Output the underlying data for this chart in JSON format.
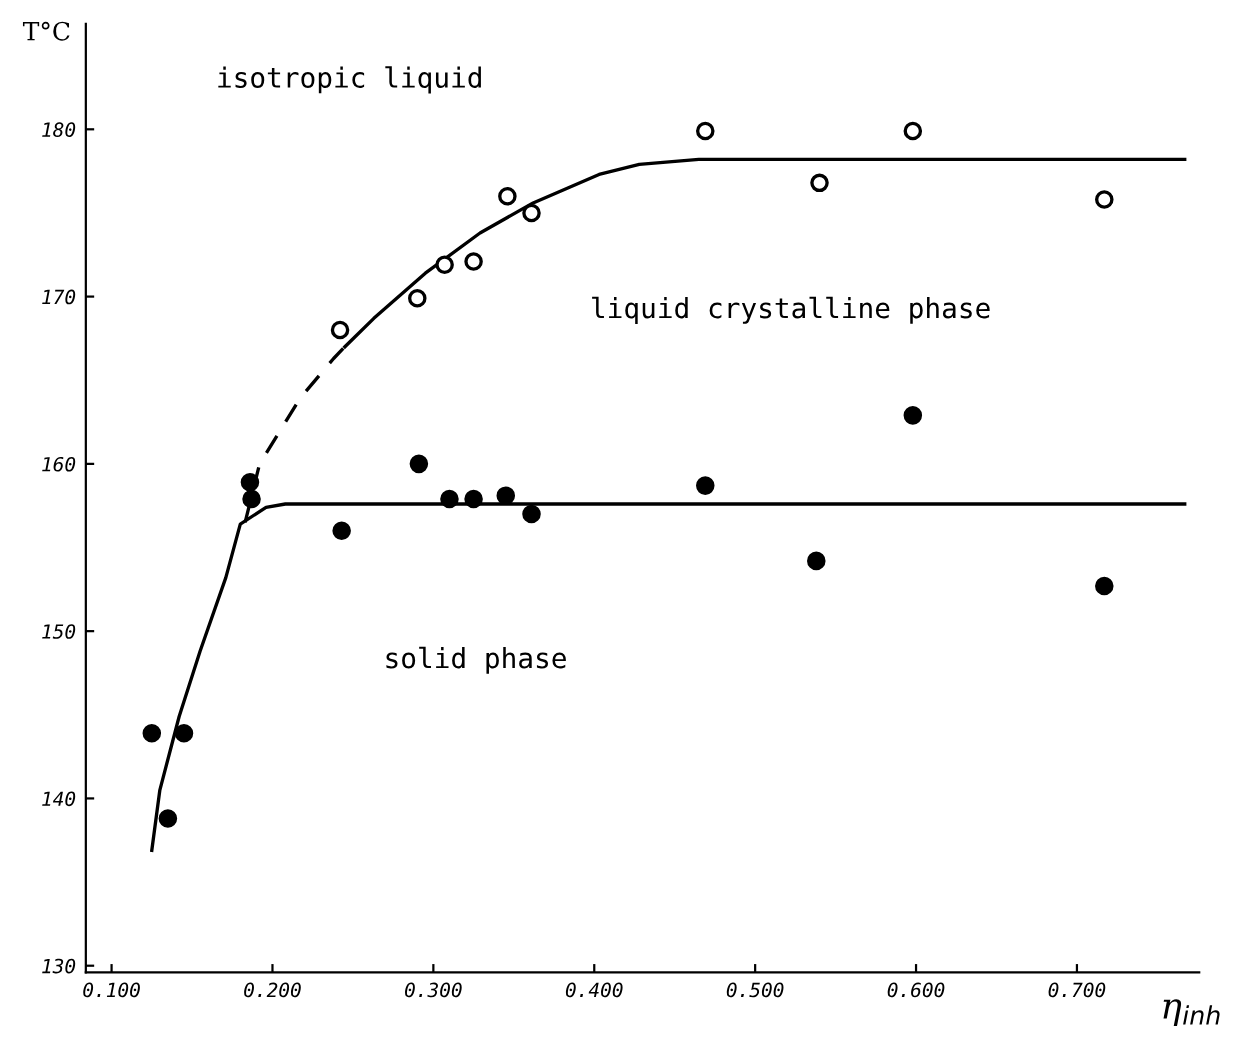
{
  "chart_data": {
    "type": "scatter",
    "xlabel": "η$_{inh}$",
    "ylabel": "T°C",
    "annotations": [
      "isotropic liquid",
      "liquid crystalline phase",
      "solid phase"
    ],
    "xlim": [
      0.084,
      0.776
    ],
    "ylim": [
      129.6,
      186.3
    ],
    "xticks": [
      {
        "value": 0.1,
        "label": "0.100"
      },
      {
        "value": 0.2,
        "label": "0.200"
      },
      {
        "value": 0.3,
        "label": "0.300"
      },
      {
        "value": 0.4,
        "label": "0.400"
      },
      {
        "value": 0.5,
        "label": "0.500"
      },
      {
        "value": 0.6,
        "label": "0.600"
      },
      {
        "value": 0.7,
        "label": "0.700"
      }
    ],
    "yticks": [
      130,
      140,
      150,
      160,
      170,
      180
    ],
    "grid": false,
    "legend": false,
    "series": [
      {
        "color": "#ffffff",
        "marker": "circle",
        "x": [
          0.242,
          0.29,
          0.307,
          0.325,
          0.346,
          0.361,
          0.469,
          0.54,
          0.598,
          0.717
        ],
        "values": [
          168.0,
          169.9,
          171.9,
          172.1,
          176.0,
          175.0,
          179.9,
          176.8,
          179.9,
          175.8
        ]
      },
      {
        "color": "#000000",
        "marker": "circle",
        "x": [
          0.125,
          0.135,
          0.145,
          0.186,
          0.187,
          0.243,
          0.291,
          0.31,
          0.325,
          0.345,
          0.361,
          0.469,
          0.538,
          0.598,
          0.717
        ],
        "values": [
          143.9,
          138.8,
          143.9,
          158.9,
          157.9,
          156.0,
          160.0,
          157.9,
          157.9,
          158.1,
          157.0,
          158.7,
          154.2,
          162.9,
          152.7
        ]
      },
      {
        "type": "line",
        "color": "#000000",
        "marker": "none",
        "line_style": "solid",
        "x": [
          0.125,
          0.13,
          0.142,
          0.155,
          0.171,
          0.18,
          0.196,
          0.208,
          0.3,
          0.5,
          0.767
        ],
        "values": [
          136.9,
          140.5,
          144.9,
          148.8,
          153.2,
          156.4,
          157.4,
          157.6,
          157.6,
          157.6,
          157.6
        ]
      },
      {
        "type": "line",
        "color": "#000000",
        "marker": "none",
        "line_style": "dashed",
        "x": [
          0.183,
          0.192,
          0.217,
          0.238,
          0.245
        ],
        "values": [
          156.5,
          160.0,
          163.9,
          166.3,
          167.0
        ]
      },
      {
        "type": "line",
        "color": "#000000",
        "marker": "none",
        "line_style": "solid",
        "x": [
          0.245,
          0.263,
          0.295,
          0.329,
          0.362,
          0.403,
          0.428,
          0.465,
          0.6,
          0.767
        ],
        "values": [
          167.0,
          168.7,
          171.4,
          173.8,
          175.6,
          177.3,
          177.9,
          178.2,
          178.2,
          178.2
        ]
      }
    ]
  }
}
